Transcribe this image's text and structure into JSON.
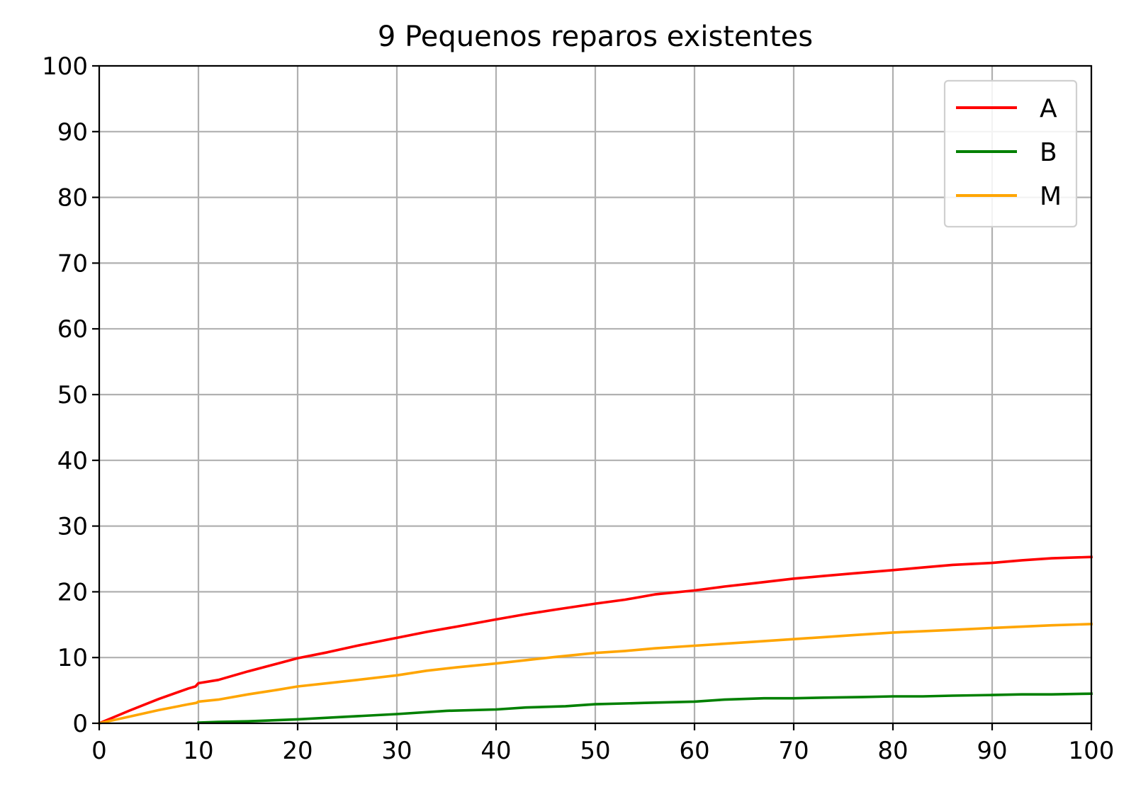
{
  "chart_data": {
    "type": "line",
    "title": "9 Pequenos reparos existentes",
    "xlabel": "",
    "ylabel": "",
    "xlim": [
      0,
      100
    ],
    "ylim": [
      0,
      100
    ],
    "x_ticks": [
      "0",
      "10",
      "20",
      "30",
      "40",
      "50",
      "60",
      "70",
      "80",
      "90",
      "100"
    ],
    "y_ticks": [
      "0",
      "10",
      "20",
      "30",
      "40",
      "50",
      "60",
      "70",
      "80",
      "90",
      "100"
    ],
    "grid": true,
    "legend_position": "top-right",
    "series": [
      {
        "name": "A",
        "color": "#ff0000",
        "x": [
          0,
          3,
          6,
          9,
          9.7,
          10,
          12,
          15,
          18,
          20,
          23,
          26,
          30,
          33,
          36,
          40,
          43,
          46,
          50,
          53,
          56,
          60,
          63,
          66,
          70,
          73,
          76,
          80,
          83,
          86,
          90,
          93,
          96,
          100
        ],
        "y": [
          0,
          1.9,
          3.7,
          5.3,
          5.6,
          6.1,
          6.6,
          7.9,
          9.1,
          9.9,
          10.8,
          11.8,
          13.0,
          13.9,
          14.7,
          15.8,
          16.6,
          17.3,
          18.2,
          18.8,
          19.6,
          20.2,
          20.8,
          21.3,
          22.0,
          22.4,
          22.8,
          23.3,
          23.7,
          24.1,
          24.4,
          24.8,
          25.1,
          25.3
        ]
      },
      {
        "name": "B",
        "color": "#008000",
        "x": [
          10,
          12,
          15,
          20,
          25,
          30,
          35,
          40,
          43,
          47,
          50,
          55,
          60,
          63,
          67,
          70,
          73,
          77,
          80,
          83,
          86,
          90,
          93,
          96,
          100
        ],
        "y": [
          0.1,
          0.2,
          0.3,
          0.6,
          1.0,
          1.4,
          1.9,
          2.1,
          2.4,
          2.6,
          2.9,
          3.1,
          3.3,
          3.6,
          3.8,
          3.8,
          3.9,
          4.0,
          4.1,
          4.1,
          4.2,
          4.3,
          4.4,
          4.4,
          4.5
        ]
      },
      {
        "name": "M",
        "color": "#ffa500",
        "x": [
          0,
          3,
          6,
          9,
          9.8,
          10,
          12,
          15,
          18,
          20,
          23,
          26,
          30,
          33,
          36,
          40,
          43,
          46,
          50,
          53,
          56,
          60,
          63,
          66,
          70,
          73,
          76,
          80,
          83,
          86,
          90,
          93,
          96,
          100
        ],
        "y": [
          0,
          1.0,
          2.0,
          2.9,
          3.1,
          3.3,
          3.6,
          4.4,
          5.1,
          5.6,
          6.1,
          6.6,
          7.3,
          8.0,
          8.5,
          9.1,
          9.6,
          10.1,
          10.7,
          11.0,
          11.4,
          11.8,
          12.1,
          12.4,
          12.8,
          13.1,
          13.4,
          13.8,
          14.0,
          14.2,
          14.5,
          14.7,
          14.9,
          15.1
        ]
      }
    ]
  }
}
